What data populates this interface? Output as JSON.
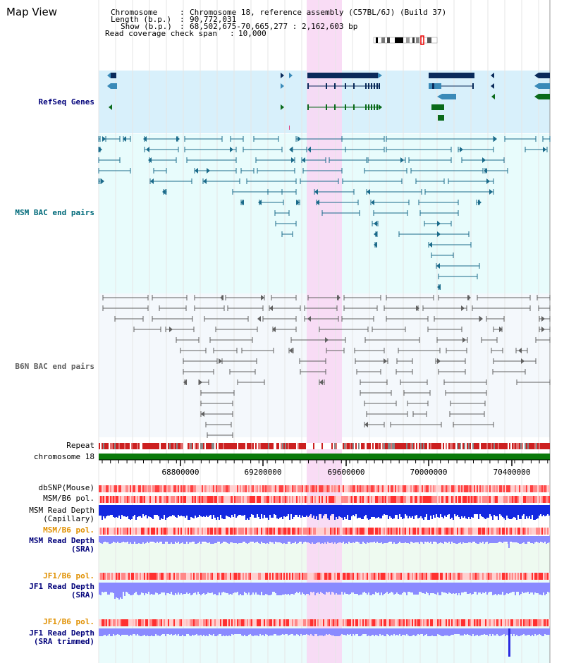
{
  "window": {
    "title": "Map View"
  },
  "info": {
    "chromosome_label": "Chromosome",
    "chromosome_value": "Chromosome 18, reference assembly (C57BL/6J) (Build 37)",
    "length_label": "Length (b.p.)",
    "length_value": "90,772,031",
    "show_label": "Show (b.p.)",
    "show_value": "68,502,675-70,665,277 : 2,162,603 bp",
    "coverage_label": "Read coverage check span",
    "coverage_value": "10,000"
  },
  "tracks": {
    "refseq": "RefSeq Genes",
    "msm_bac": "MSM BAC end pairs",
    "b6n_bac": "B6N BAC end pairs",
    "repeat": "Repeat",
    "chromosome": "chromosome 18",
    "dbsnp": "dbSNP(Mouse)",
    "msm_b6_pol_1": "MSM/B6 pol.",
    "msm_read_depth_cap_1": "MSM Read Depth",
    "msm_read_depth_cap_2": "(Capillary)",
    "msm_b6_pol_2": "MSM/B6 pol.",
    "msm_read_depth_sra_1": "MSM Read Depth",
    "msm_read_depth_sra_2": "(SRA)",
    "jf1_b6_pol_1": "JF1/B6 pol.",
    "jf1_read_depth_1": "JF1 Read Depth",
    "jf1_read_depth_2": "(SRA)",
    "jf1_b6_pol_2": "JF1/B6 pol.",
    "jf1_read_depth_trim_1": "JF1 Read Depth",
    "jf1_read_depth_trim_2": "(SRA trimmed)"
  },
  "axis": {
    "ticks": [
      "68800000",
      "69200000",
      "69600000",
      "70000000",
      "70400000"
    ]
  },
  "colors": {
    "refseq_bg": "#d8f0fb",
    "msm_bg": "#e8fcfc",
    "b6n_bg": "#f4f8fc",
    "highlight": "#f8d8f4",
    "gene_dark": "#0a2a5a",
    "gene_mid": "#3a8ab8",
    "gene_green": "#0a6a1a",
    "msm_pair": "#1a6a8a",
    "b6n_pair": "#606060",
    "chromosome_bar": "#0a7a0a",
    "repeat": "#cc2020",
    "polymorphism": "#ff6060",
    "depth_capillary": "#1428e0",
    "depth_sra": "#8a8aff",
    "label_navy": "#00007a",
    "label_teal": "#006a7a",
    "label_orange": "#e09000"
  }
}
